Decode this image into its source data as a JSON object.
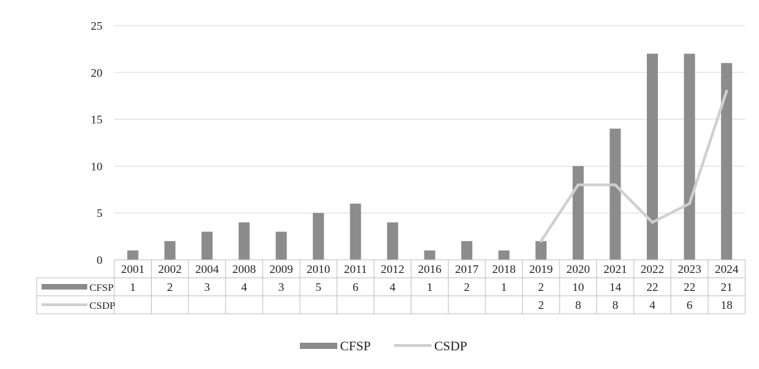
{
  "chart_data": {
    "type": "bar",
    "categories": [
      "2001",
      "2002",
      "2004",
      "2008",
      "2009",
      "2010",
      "2011",
      "2012",
      "2016",
      "2017",
      "2018",
      "2019",
      "2020",
      "2021",
      "2022",
      "2023",
      "2024"
    ],
    "series": [
      {
        "name": "CFSP",
        "type": "bar",
        "color": "#8c8c8c",
        "values": [
          1,
          2,
          3,
          4,
          3,
          5,
          6,
          4,
          1,
          2,
          1,
          2,
          10,
          14,
          22,
          22,
          21
        ],
        "labels": [
          "1",
          "2",
          "3",
          "4",
          "3",
          "5",
          "6",
          "4",
          "1",
          "2",
          "1",
          "2",
          "10",
          "14",
          "22",
          "22",
          "21"
        ]
      },
      {
        "name": "CSDP",
        "type": "line",
        "color": "#cfcfcf",
        "values": [
          null,
          null,
          null,
          null,
          null,
          null,
          null,
          null,
          null,
          null,
          null,
          2,
          8,
          8,
          4,
          6,
          18
        ],
        "labels": [
          "",
          "",
          "",
          "",
          "",
          "",
          "",
          "",
          "",
          "",
          "",
          "2",
          "8",
          "8",
          "4",
          "6",
          "18"
        ]
      }
    ],
    "y_ticks": [
      "0",
      "5",
      "10",
      "15",
      "20",
      "25"
    ],
    "ylim": [
      0,
      25
    ],
    "grid": true,
    "legend": [
      "CFSP",
      "CSDP"
    ],
    "legend_position": "bottom",
    "data_table": true
  }
}
